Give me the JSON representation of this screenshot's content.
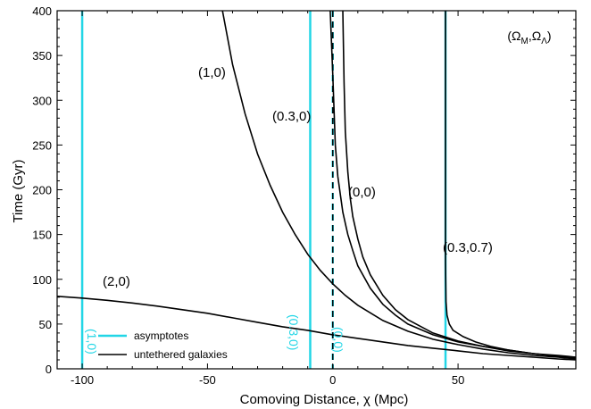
{
  "chart_data": {
    "type": "line",
    "xlabel": "Comoving Distance, χ (Mpc)",
    "ylabel": "Time (Gyr)",
    "xlim": [
      -110,
      97
    ],
    "ylim": [
      0,
      400
    ],
    "xticks": [
      -100,
      -50,
      0,
      50
    ],
    "yticks": [
      0,
      50,
      100,
      150,
      200,
      250,
      300,
      350,
      400
    ],
    "grid": false,
    "corner_label": "(ΩM,ΩΛ)",
    "corner_label_parts": {
      "open": "(Ω",
      "sub1": "M",
      "mid": ",Ω",
      "sub2": "Λ",
      "close": ")"
    },
    "asymptote_color": "#22d6e6",
    "curve_color": "#000000",
    "asymptotes": [
      {
        "x": -100,
        "label": "(1,0)"
      },
      {
        "x": -9,
        "label": "(0.3,0)"
      },
      {
        "x": 0,
        "label": "(0,0)",
        "style": "dashed"
      },
      {
        "x": 45,
        "label": ""
      }
    ],
    "curves": [
      {
        "label": "(1,0)",
        "points": [
          [
            -44,
            400
          ],
          [
            -40,
            340
          ],
          [
            -35,
            285
          ],
          [
            -30,
            240
          ],
          [
            -25,
            205
          ],
          [
            -20,
            175
          ],
          [
            -15,
            150
          ],
          [
            -10,
            128
          ],
          [
            -5,
            110
          ],
          [
            0,
            95
          ],
          [
            5,
            82
          ],
          [
            10,
            71
          ],
          [
            20,
            54
          ],
          [
            30,
            42
          ],
          [
            40,
            33
          ],
          [
            50,
            27
          ],
          [
            60,
            22
          ],
          [
            70,
            18
          ],
          [
            80,
            15
          ],
          [
            90,
            13
          ],
          [
            97,
            11
          ]
        ]
      },
      {
        "label": "(0.3,0)",
        "points": [
          [
            -1,
            400
          ],
          [
            0,
            330
          ],
          [
            1,
            250
          ],
          [
            2,
            215
          ],
          [
            4,
            175
          ],
          [
            6,
            150
          ],
          [
            8,
            132
          ],
          [
            10,
            115
          ],
          [
            15,
            90
          ],
          [
            20,
            72
          ],
          [
            25,
            60
          ],
          [
            30,
            50
          ],
          [
            40,
            38
          ],
          [
            50,
            30
          ],
          [
            60,
            25
          ],
          [
            70,
            21
          ],
          [
            80,
            17
          ],
          [
            90,
            15
          ],
          [
            97,
            13
          ]
        ]
      },
      {
        "label": "(0,0)",
        "points": [
          [
            4,
            400
          ],
          [
            4.5,
            320
          ],
          [
            5,
            265
          ],
          [
            6,
            220
          ],
          [
            7,
            190
          ],
          [
            8,
            170
          ],
          [
            10,
            145
          ],
          [
            12,
            125
          ],
          [
            15,
            105
          ],
          [
            20,
            82
          ],
          [
            25,
            66
          ],
          [
            30,
            55
          ],
          [
            40,
            40
          ],
          [
            50,
            31
          ],
          [
            60,
            25
          ],
          [
            70,
            20
          ],
          [
            80,
            17
          ],
          [
            90,
            14
          ],
          [
            97,
            13
          ]
        ]
      },
      {
        "label": "(0.3,0.7)",
        "points": [
          [
            45,
            400
          ],
          [
            45,
            120
          ],
          [
            45.2,
            75
          ],
          [
            45.6,
            60
          ],
          [
            46.5,
            50
          ],
          [
            48,
            43
          ],
          [
            52,
            36
          ],
          [
            57,
            30
          ],
          [
            63,
            25
          ],
          [
            70,
            21
          ],
          [
            80,
            17
          ],
          [
            90,
            14
          ],
          [
            97,
            12
          ]
        ]
      },
      {
        "label": "(2,0)",
        "points": [
          [
            -110,
            81
          ],
          [
            -100,
            79
          ],
          [
            -90,
            76.5
          ],
          [
            -80,
            73.5
          ],
          [
            -70,
            70
          ],
          [
            -60,
            66
          ],
          [
            -50,
            62
          ],
          [
            -40,
            57
          ],
          [
            -30,
            52
          ],
          [
            -20,
            47
          ],
          [
            -10,
            43
          ],
          [
            0,
            38
          ],
          [
            10,
            34
          ],
          [
            20,
            30
          ],
          [
            30,
            26
          ],
          [
            40,
            23
          ],
          [
            50,
            20
          ],
          [
            60,
            17
          ],
          [
            70,
            15
          ],
          [
            80,
            13
          ],
          [
            90,
            11
          ],
          [
            97,
            10
          ]
        ]
      }
    ],
    "curve_labels": [
      "(1,0)",
      "(0.3,0)",
      "(0,0)",
      "(0.3,0.7)",
      "(2,0)"
    ],
    "legend": [
      {
        "label": "asymptotes",
        "kind": "asymptote"
      },
      {
        "label": "untethered galaxies",
        "kind": "curve"
      }
    ]
  }
}
